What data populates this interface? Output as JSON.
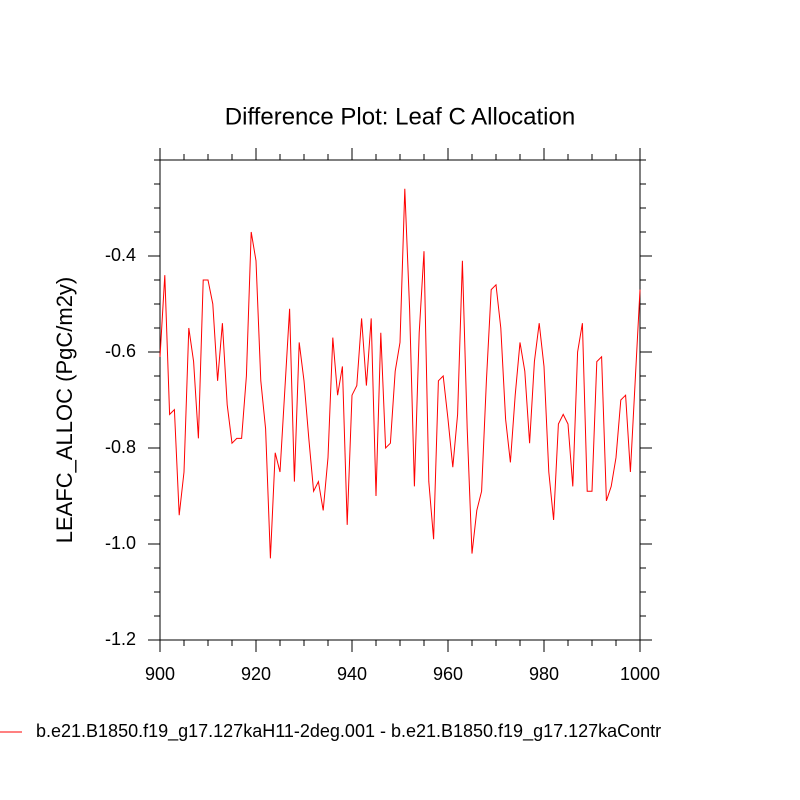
{
  "chart_data": {
    "type": "line",
    "title": "Difference Plot: Leaf C Allocation",
    "y_label": "LEAFC_ALLOC  (PgC/m2y)",
    "x": [
      900,
      901,
      902,
      903,
      904,
      905,
      906,
      907,
      908,
      909,
      910,
      911,
      912,
      913,
      914,
      915,
      916,
      917,
      918,
      919,
      920,
      921,
      922,
      923,
      924,
      925,
      926,
      927,
      928,
      929,
      930,
      931,
      932,
      933,
      934,
      935,
      936,
      937,
      938,
      939,
      940,
      941,
      942,
      943,
      944,
      945,
      946,
      947,
      948,
      949,
      950,
      951,
      952,
      953,
      954,
      955,
      956,
      957,
      958,
      959,
      960,
      961,
      962,
      963,
      964,
      965,
      966,
      967,
      968,
      969,
      970,
      971,
      972,
      973,
      974,
      975,
      976,
      977,
      978,
      979,
      980,
      981,
      982,
      983,
      984,
      985,
      986,
      987,
      988,
      989,
      990,
      991,
      992,
      993,
      994,
      995,
      996,
      997,
      998,
      999,
      1000
    ],
    "series": [
      {
        "name": "b.e21.B1850.f19_g17.127kaH11-2deg.001 - b.e21.B1850.f19_g17.127kaContr",
        "color": "#ff0000",
        "values": [
          -0.61,
          -0.44,
          -0.73,
          -0.72,
          -0.94,
          -0.85,
          -0.55,
          -0.62,
          -0.78,
          -0.45,
          -0.45,
          -0.5,
          -0.66,
          -0.54,
          -0.71,
          -0.79,
          -0.78,
          -0.78,
          -0.65,
          -0.35,
          -0.41,
          -0.66,
          -0.76,
          -1.03,
          -0.81,
          -0.85,
          -0.68,
          -0.51,
          -0.87,
          -0.58,
          -0.66,
          -0.78,
          -0.89,
          -0.87,
          -0.93,
          -0.82,
          -0.57,
          -0.69,
          -0.63,
          -0.96,
          -0.69,
          -0.67,
          -0.53,
          -0.67,
          -0.53,
          -0.9,
          -0.56,
          -0.8,
          -0.79,
          -0.64,
          -0.58,
          -0.26,
          -0.51,
          -0.88,
          -0.56,
          -0.39,
          -0.87,
          -0.99,
          -0.66,
          -0.65,
          -0.74,
          -0.84,
          -0.73,
          -0.41,
          -0.76,
          -1.02,
          -0.93,
          -0.89,
          -0.66,
          -0.47,
          -0.46,
          -0.55,
          -0.74,
          -0.83,
          -0.69,
          -0.58,
          -0.64,
          -0.79,
          -0.62,
          -0.54,
          -0.63,
          -0.85,
          -0.95,
          -0.75,
          -0.73,
          -0.75,
          -0.88,
          -0.6,
          -0.54,
          -0.89,
          -0.89,
          -0.62,
          -0.61,
          -0.91,
          -0.88,
          -0.82,
          -0.7,
          -0.69,
          -0.85,
          -0.66,
          -0.47
        ]
      }
    ],
    "xlim": [
      900,
      1000
    ],
    "xticks": [
      900,
      920,
      940,
      960,
      980,
      1000
    ],
    "ylim": [
      -1.2,
      -0.2
    ],
    "yticks": [
      -1.2,
      {
        "value": -1,
        "label": "-1.0"
      },
      -0.8,
      -0.6,
      -0.4
    ]
  }
}
